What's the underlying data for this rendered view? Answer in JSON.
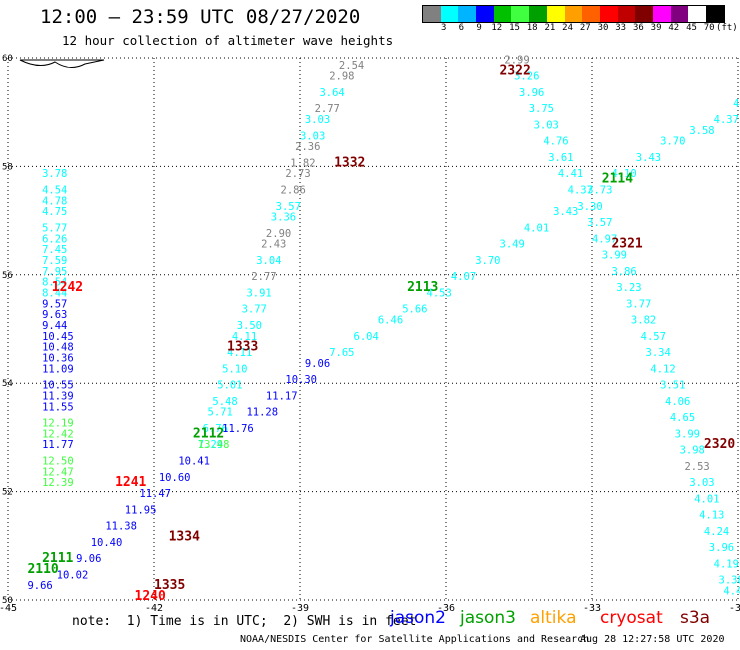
{
  "header": {
    "title": "12:00 – 23:59 UTC 08/27/2020",
    "subtitle": "12 hour collection of altimeter wave heights"
  },
  "colorbar": {
    "colors": [
      "#808080",
      "#00ffff",
      "#00b4ff",
      "#0000ff",
      "#00c000",
      "#40ff40",
      "#00a000",
      "#ffff00",
      "#ffa000",
      "#ff6000",
      "#ff0000",
      "#c00000",
      "#800000",
      "#ff00ff",
      "#800080",
      "#ffffff",
      "#000000"
    ],
    "labels": [
      "3",
      "6",
      "9",
      "12",
      "15",
      "18",
      "21",
      "24",
      "27",
      "30",
      "33",
      "36",
      "39",
      "42",
      "45",
      "70",
      "(ft)"
    ]
  },
  "axes": {
    "x_ticks": [
      "-45",
      "-42",
      "-39",
      "-36",
      "-33",
      "-30"
    ],
    "y_ticks": [
      "60",
      "58",
      "56",
      "54",
      "52",
      "50"
    ],
    "xlim": [
      -45,
      -30
    ],
    "ylim": [
      50,
      60
    ]
  },
  "legend": {
    "note": "note:  1) Time is in UTC;  2) SWH is in feet",
    "satellites": [
      {
        "name": "jason2",
        "color": "#0000ff"
      },
      {
        "name": "jason3",
        "color": "#00a000"
      },
      {
        "name": "altika",
        "color": "#ffa000"
      },
      {
        "name": "cryosat",
        "color": "#ff0000"
      },
      {
        "name": "s3a",
        "color": "#800000"
      }
    ]
  },
  "footer": {
    "credit": "NOAA/NESDIS Center for Satellite Applications and Research",
    "timestamp": "Aug 28 12:27:58 UTC 2020"
  },
  "chart_data": {
    "type": "scatter",
    "tracks": [
      {
        "time": "1242",
        "color": "#ff0000",
        "lon": -44.1,
        "lat": 55.7,
        "points": [
          {
            "lon": -44.3,
            "lat": 57.8,
            "v": "3.78"
          },
          {
            "lon": -44.3,
            "lat": 57.5,
            "v": "4.54"
          },
          {
            "lon": -44.3,
            "lat": 57.3,
            "v": "4.78"
          },
          {
            "lon": -44.3,
            "lat": 57.1,
            "v": "4.75"
          },
          {
            "lon": -44.3,
            "lat": 56.8,
            "v": "5.77"
          },
          {
            "lon": -44.3,
            "lat": 56.6,
            "v": "6.26"
          },
          {
            "lon": -44.3,
            "lat": 56.4,
            "v": "7.45"
          },
          {
            "lon": -44.3,
            "lat": 56.2,
            "v": "7.59"
          },
          {
            "lon": -44.3,
            "lat": 56.0,
            "v": "7.95"
          },
          {
            "lon": -44.3,
            "lat": 55.8,
            "v": "8.54"
          },
          {
            "lon": -44.3,
            "lat": 55.6,
            "v": "8.44"
          },
          {
            "lon": -44.3,
            "lat": 55.4,
            "v": "9.57"
          },
          {
            "lon": -44.3,
            "lat": 55.2,
            "v": "9.63"
          },
          {
            "lon": -44.3,
            "lat": 55.0,
            "v": "9.44"
          },
          {
            "lon": -44.3,
            "lat": 54.8,
            "v": "10.45"
          },
          {
            "lon": -44.3,
            "lat": 54.6,
            "v": "10.48"
          },
          {
            "lon": -44.3,
            "lat": 54.4,
            "v": "10.36"
          },
          {
            "lon": -44.3,
            "lat": 54.2,
            "v": "11.09"
          },
          {
            "lon": -44.3,
            "lat": 53.9,
            "v": "10.55"
          },
          {
            "lon": -44.3,
            "lat": 53.7,
            "v": "11.39"
          },
          {
            "lon": -44.3,
            "lat": 53.5,
            "v": "11.55"
          },
          {
            "lon": -44.3,
            "lat": 53.2,
            "v": "12.19"
          },
          {
            "lon": -44.3,
            "lat": 53.0,
            "v": "12.42"
          },
          {
            "lon": -44.3,
            "lat": 52.8,
            "v": "11.77"
          },
          {
            "lon": -44.3,
            "lat": 52.5,
            "v": "12.50"
          },
          {
            "lon": -44.3,
            "lat": 52.3,
            "v": "12.47"
          },
          {
            "lon": -44.3,
            "lat": 52.1,
            "v": "12.39"
          }
        ]
      },
      {
        "time": "1241",
        "color": "#ff0000",
        "lon": -42.8,
        "lat": 52.1,
        "points": []
      },
      {
        "time": "1240",
        "color": "#ff0000",
        "lon": -42.4,
        "lat": 50.0,
        "points": []
      },
      {
        "time": "1334",
        "color": "#800000",
        "lon": -41.7,
        "lat": 51.1,
        "points": []
      },
      {
        "time": "1335",
        "color": "#800000",
        "lon": -42.0,
        "lat": 50.2,
        "points": []
      },
      {
        "time": "1333",
        "color": "#800000",
        "lon": -40.5,
        "lat": 54.6,
        "points": []
      },
      {
        "time": "1332",
        "color": "#800000",
        "lon": -38.3,
        "lat": 58.0,
        "points": []
      },
      {
        "time": "2322",
        "color": "#800000",
        "lon": -34.9,
        "lat": 59.7,
        "points": []
      },
      {
        "time": "2321",
        "color": "#800000",
        "lon": -32.6,
        "lat": 56.5,
        "points": []
      },
      {
        "time": "2320",
        "color": "#800000",
        "lon": -30.7,
        "lat": 52.8,
        "points": []
      },
      {
        "time": "2113",
        "color": "#00a000",
        "lon": -36.8,
        "lat": 55.7,
        "points": []
      },
      {
        "time": "2112",
        "color": "#00a000",
        "lon": -41.2,
        "lat": 53.0,
        "points": []
      },
      {
        "time": "2114",
        "color": "#00a000",
        "lon": -32.8,
        "lat": 57.7,
        "points": []
      },
      {
        "time": "2111",
        "color": "#00a000",
        "lon": -44.3,
        "lat": 50.7,
        "points": []
      },
      {
        "time": "2110",
        "color": "#00a000",
        "lon": -44.6,
        "lat": 50.5,
        "points": []
      }
    ],
    "series_points": [
      {
        "lon": -38.2,
        "lat": 59.8,
        "v": "2.54",
        "c": "#808080"
      },
      {
        "lon": -38.4,
        "lat": 59.6,
        "v": "2.98",
        "c": "#808080"
      },
      {
        "lon": -38.6,
        "lat": 59.3,
        "v": "3.64",
        "c": "#00ffff"
      },
      {
        "lon": -38.7,
        "lat": 59.0,
        "v": "2.77",
        "c": "#808080"
      },
      {
        "lon": -38.9,
        "lat": 58.8,
        "v": "3.03",
        "c": "#00ffff"
      },
      {
        "lon": -39.0,
        "lat": 58.5,
        "v": "3.03",
        "c": "#00ffff"
      },
      {
        "lon": -39.1,
        "lat": 58.3,
        "v": "2.36",
        "c": "#808080"
      },
      {
        "lon": -39.2,
        "lat": 58.0,
        "v": "1.82",
        "c": "#808080"
      },
      {
        "lon": -39.3,
        "lat": 57.8,
        "v": "2.73",
        "c": "#808080"
      },
      {
        "lon": -39.4,
        "lat": 57.5,
        "v": "2.86",
        "c": "#808080"
      },
      {
        "lon": -39.5,
        "lat": 57.2,
        "v": "3.57",
        "c": "#00ffff"
      },
      {
        "lon": -39.6,
        "lat": 57.0,
        "v": "3.36",
        "c": "#00ffff"
      },
      {
        "lon": -39.7,
        "lat": 56.7,
        "v": "2.90",
        "c": "#808080"
      },
      {
        "lon": -39.8,
        "lat": 56.5,
        "v": "2.43",
        "c": "#808080"
      },
      {
        "lon": -39.9,
        "lat": 56.2,
        "v": "3.04",
        "c": "#00ffff"
      },
      {
        "lon": -40.0,
        "lat": 55.9,
        "v": "2.77",
        "c": "#808080"
      },
      {
        "lon": -40.1,
        "lat": 55.6,
        "v": "3.91",
        "c": "#00ffff"
      },
      {
        "lon": -40.2,
        "lat": 55.3,
        "v": "3.77",
        "c": "#00ffff"
      },
      {
        "lon": -40.3,
        "lat": 55.0,
        "v": "3.50",
        "c": "#00ffff"
      },
      {
        "lon": -40.4,
        "lat": 54.8,
        "v": "4.11",
        "c": "#00ffff"
      },
      {
        "lon": -40.5,
        "lat": 54.5,
        "v": "4.11",
        "c": "#00ffff"
      },
      {
        "lon": -40.6,
        "lat": 54.2,
        "v": "5.10",
        "c": "#00ffff"
      },
      {
        "lon": -40.7,
        "lat": 53.9,
        "v": "5.01",
        "c": "#00ffff"
      },
      {
        "lon": -40.8,
        "lat": 53.6,
        "v": "5.48",
        "c": "#00ffff"
      },
      {
        "lon": -40.9,
        "lat": 53.4,
        "v": "5.71",
        "c": "#00ffff"
      },
      {
        "lon": -41.0,
        "lat": 53.1,
        "v": "6.76",
        "c": "#00ffff"
      },
      {
        "lon": -41.1,
        "lat": 52.8,
        "v": "7.29",
        "c": "#00ffff"
      },
      {
        "lon": -34.8,
        "lat": 59.9,
        "v": "2.99",
        "c": "#808080"
      },
      {
        "lon": -34.6,
        "lat": 59.6,
        "v": "3.26",
        "c": "#00ffff"
      },
      {
        "lon": -34.5,
        "lat": 59.3,
        "v": "3.96",
        "c": "#00ffff"
      },
      {
        "lon": -34.3,
        "lat": 59.0,
        "v": "3.75",
        "c": "#00ffff"
      },
      {
        "lon": -34.2,
        "lat": 58.7,
        "v": "3.03",
        "c": "#00ffff"
      },
      {
        "lon": -34.0,
        "lat": 58.4,
        "v": "4.76",
        "c": "#00ffff"
      },
      {
        "lon": -33.9,
        "lat": 58.1,
        "v": "3.61",
        "c": "#00ffff"
      },
      {
        "lon": -33.7,
        "lat": 57.8,
        "v": "4.41",
        "c": "#00ffff"
      },
      {
        "lon": -33.5,
        "lat": 57.5,
        "v": "4.37",
        "c": "#00ffff"
      },
      {
        "lon": -33.3,
        "lat": 57.2,
        "v": "3.30",
        "c": "#00ffff"
      },
      {
        "lon": -33.1,
        "lat": 56.9,
        "v": "3.57",
        "c": "#00ffff"
      },
      {
        "lon": -33.0,
        "lat": 56.6,
        "v": "4.97",
        "c": "#00ffff"
      },
      {
        "lon": -32.8,
        "lat": 56.3,
        "v": "3.99",
        "c": "#00ffff"
      },
      {
        "lon": -32.6,
        "lat": 56.0,
        "v": "3.86",
        "c": "#00ffff"
      },
      {
        "lon": -32.5,
        "lat": 55.7,
        "v": "3.23",
        "c": "#00ffff"
      },
      {
        "lon": -32.3,
        "lat": 55.4,
        "v": "3.77",
        "c": "#00ffff"
      },
      {
        "lon": -32.2,
        "lat": 55.1,
        "v": "3.82",
        "c": "#00ffff"
      },
      {
        "lon": -32.0,
        "lat": 54.8,
        "v": "4.57",
        "c": "#00ffff"
      },
      {
        "lon": -31.9,
        "lat": 54.5,
        "v": "3.34",
        "c": "#00ffff"
      },
      {
        "lon": -31.8,
        "lat": 54.2,
        "v": "4.12",
        "c": "#00ffff"
      },
      {
        "lon": -31.6,
        "lat": 53.9,
        "v": "3.51",
        "c": "#00ffff"
      },
      {
        "lon": -31.5,
        "lat": 53.6,
        "v": "4.06",
        "c": "#00ffff"
      },
      {
        "lon": -31.4,
        "lat": 53.3,
        "v": "4.65",
        "c": "#00ffff"
      },
      {
        "lon": -31.3,
        "lat": 53.0,
        "v": "3.99",
        "c": "#00ffff"
      },
      {
        "lon": -31.2,
        "lat": 52.7,
        "v": "3.98",
        "c": "#00ffff"
      },
      {
        "lon": -31.1,
        "lat": 52.4,
        "v": "2.53",
        "c": "#808080"
      },
      {
        "lon": -31.0,
        "lat": 52.1,
        "v": "3.03",
        "c": "#00ffff"
      },
      {
        "lon": -30.9,
        "lat": 51.8,
        "v": "4.01",
        "c": "#00ffff"
      },
      {
        "lon": -30.8,
        "lat": 51.5,
        "v": "4.13",
        "c": "#00ffff"
      },
      {
        "lon": -30.7,
        "lat": 51.2,
        "v": "4.24",
        "c": "#00ffff"
      },
      {
        "lon": -30.6,
        "lat": 50.9,
        "v": "3.96",
        "c": "#00ffff"
      },
      {
        "lon": -30.5,
        "lat": 50.6,
        "v": "4.19",
        "c": "#00ffff"
      },
      {
        "lon": -30.4,
        "lat": 50.3,
        "v": "3.38",
        "c": "#00ffff"
      },
      {
        "lon": -30.3,
        "lat": 50.1,
        "v": "4.43",
        "c": "#00ffff"
      },
      {
        "lon": -30.1,
        "lat": 59.1,
        "v": "4.28",
        "c": "#00ffff"
      },
      {
        "lon": -30.5,
        "lat": 58.8,
        "v": "4.37",
        "c": "#00ffff"
      },
      {
        "lon": -31.0,
        "lat": 58.6,
        "v": "3.58",
        "c": "#00ffff"
      },
      {
        "lon": -31.6,
        "lat": 58.4,
        "v": "3.70",
        "c": "#00ffff"
      },
      {
        "lon": -32.1,
        "lat": 58.1,
        "v": "3.43",
        "c": "#00ffff"
      },
      {
        "lon": -32.6,
        "lat": 57.8,
        "v": "4.10",
        "c": "#00ffff"
      },
      {
        "lon": -33.1,
        "lat": 57.5,
        "v": "3.73",
        "c": "#00ffff"
      },
      {
        "lon": -33.8,
        "lat": 57.1,
        "v": "3.43",
        "c": "#00ffff"
      },
      {
        "lon": -34.4,
        "lat": 56.8,
        "v": "4.01",
        "c": "#00ffff"
      },
      {
        "lon": -34.9,
        "lat": 56.5,
        "v": "3.49",
        "c": "#00ffff"
      },
      {
        "lon": -35.4,
        "lat": 56.2,
        "v": "3.70",
        "c": "#00ffff"
      },
      {
        "lon": -35.9,
        "lat": 55.9,
        "v": "4.07",
        "c": "#00ffff"
      },
      {
        "lon": -36.4,
        "lat": 55.6,
        "v": "4.53",
        "c": "#00ffff"
      },
      {
        "lon": -36.9,
        "lat": 55.3,
        "v": "5.66",
        "c": "#00ffff"
      },
      {
        "lon": -37.4,
        "lat": 55.1,
        "v": "6.46",
        "c": "#00ffff"
      },
      {
        "lon": -37.9,
        "lat": 54.8,
        "v": "6.04",
        "c": "#00ffff"
      },
      {
        "lon": -38.4,
        "lat": 54.5,
        "v": "7.65",
        "c": "#00ffff"
      },
      {
        "lon": -38.9,
        "lat": 54.3,
        "v": "9.06",
        "c": "#0000ff"
      },
      {
        "lon": -39.3,
        "lat": 54.0,
        "v": "10.30",
        "c": "#0000ff"
      },
      {
        "lon": -39.7,
        "lat": 53.7,
        "v": "11.17",
        "c": "#0000ff"
      },
      {
        "lon": -40.1,
        "lat": 53.4,
        "v": "11.28",
        "c": "#0000ff"
      },
      {
        "lon": -40.6,
        "lat": 53.1,
        "v": "11.76",
        "c": "#0000ff"
      },
      {
        "lon": -41.1,
        "lat": 52.8,
        "v": "13.48",
        "c": "#40ff40"
      },
      {
        "lon": -41.5,
        "lat": 52.5,
        "v": "10.41",
        "c": "#0000ff"
      },
      {
        "lon": -41.9,
        "lat": 52.2,
        "v": "10.60",
        "c": "#0000ff"
      },
      {
        "lon": -42.3,
        "lat": 51.9,
        "v": "11.47",
        "c": "#0000ff"
      },
      {
        "lon": -42.6,
        "lat": 51.6,
        "v": "11.95",
        "c": "#0000ff"
      },
      {
        "lon": -43.0,
        "lat": 51.3,
        "v": "11.38",
        "c": "#0000ff"
      },
      {
        "lon": -43.3,
        "lat": 51.0,
        "v": "10.40",
        "c": "#0000ff"
      },
      {
        "lon": -43.6,
        "lat": 50.7,
        "v": "9.06",
        "c": "#0000ff"
      },
      {
        "lon": -44.0,
        "lat": 50.4,
        "v": "10.02",
        "c": "#0000ff"
      },
      {
        "lon": -44.6,
        "lat": 50.2,
        "v": "9.66",
        "c": "#0000ff"
      }
    ]
  }
}
